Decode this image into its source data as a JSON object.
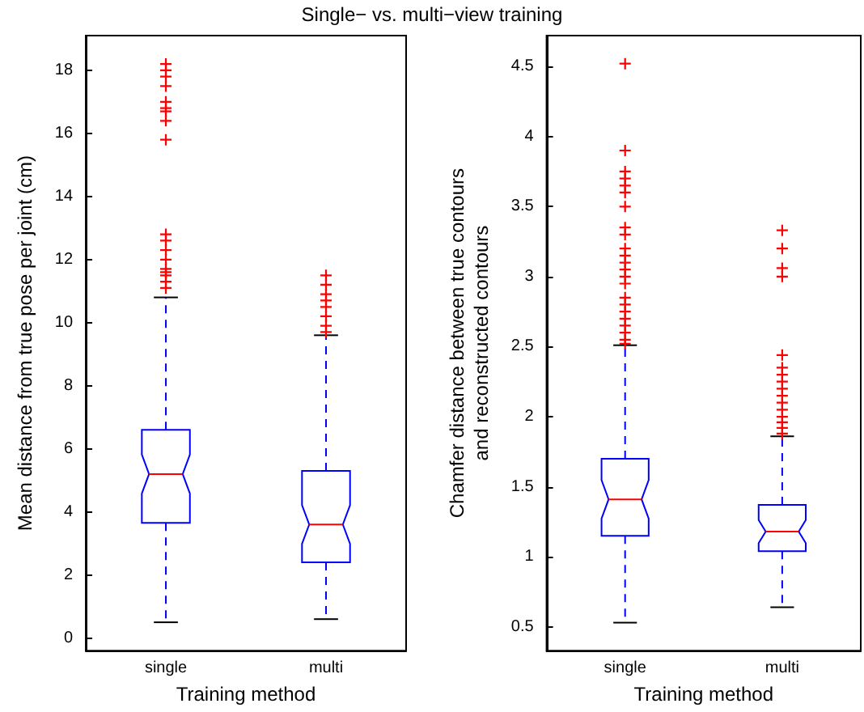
{
  "chart_data": [
    {
      "type": "box",
      "title": "Single− vs. multi−view training",
      "xlabel": "Training method",
      "ylabel": "Mean distance from true pose per joint (cm)",
      "categories": [
        "single",
        "multi"
      ],
      "series": [
        {
          "color": "#0000ff",
          "boxes": [
            {
              "low": 0.5,
              "q1": 3.65,
              "median": 5.2,
              "q3": 6.6,
              "high": 10.8,
              "outliers": [
                11.1,
                11.3,
                11.5,
                11.6,
                11.7,
                12.0,
                12.3,
                12.6,
                12.8,
                15.8,
                16.4,
                16.7,
                16.8,
                17.0,
                17.5,
                17.8,
                18.0,
                18.2
              ]
            },
            {
              "low": 0.6,
              "q1": 2.4,
              "median": 3.6,
              "q3": 5.3,
              "high": 9.6,
              "outliers": [
                9.7,
                9.9,
                10.2,
                10.5,
                10.7,
                10.9,
                11.2,
                11.5
              ]
            }
          ]
        }
      ],
      "ylim": [
        -0.4,
        19.1
      ],
      "yticks": [
        0,
        2,
        4,
        6,
        8,
        10,
        12,
        14,
        16,
        18
      ],
      "grid": false
    },
    {
      "type": "box",
      "xlabel": "Training method",
      "ylabel": "Chamfer distance between true contours\nand reconstructed contours",
      "categories": [
        "single",
        "multi"
      ],
      "series": [
        {
          "color": "#0000ff",
          "boxes": [
            {
              "low": 0.53,
              "q1": 1.15,
              "median": 1.41,
              "q3": 1.7,
              "high": 2.51,
              "outliers": [
                2.52,
                2.55,
                2.6,
                2.65,
                2.7,
                2.75,
                2.8,
                2.85,
                2.95,
                3.0,
                3.05,
                3.1,
                3.15,
                3.2,
                3.3,
                3.35,
                3.5,
                3.6,
                3.65,
                3.7,
                3.75,
                3.9,
                4.52
              ]
            },
            {
              "low": 0.64,
              "q1": 1.04,
              "median": 1.18,
              "q3": 1.37,
              "high": 1.86,
              "outliers": [
                1.88,
                1.92,
                1.96,
                2.0,
                2.05,
                2.1,
                2.15,
                2.2,
                2.25,
                2.3,
                2.35,
                2.44,
                3.0,
                3.06,
                3.2,
                3.33
              ]
            }
          ]
        }
      ],
      "ylim": [
        0.33,
        4.72
      ],
      "yticks": [
        0.5,
        1,
        1.5,
        2,
        2.5,
        3,
        3.5,
        4,
        4.5
      ],
      "grid": false
    }
  ]
}
